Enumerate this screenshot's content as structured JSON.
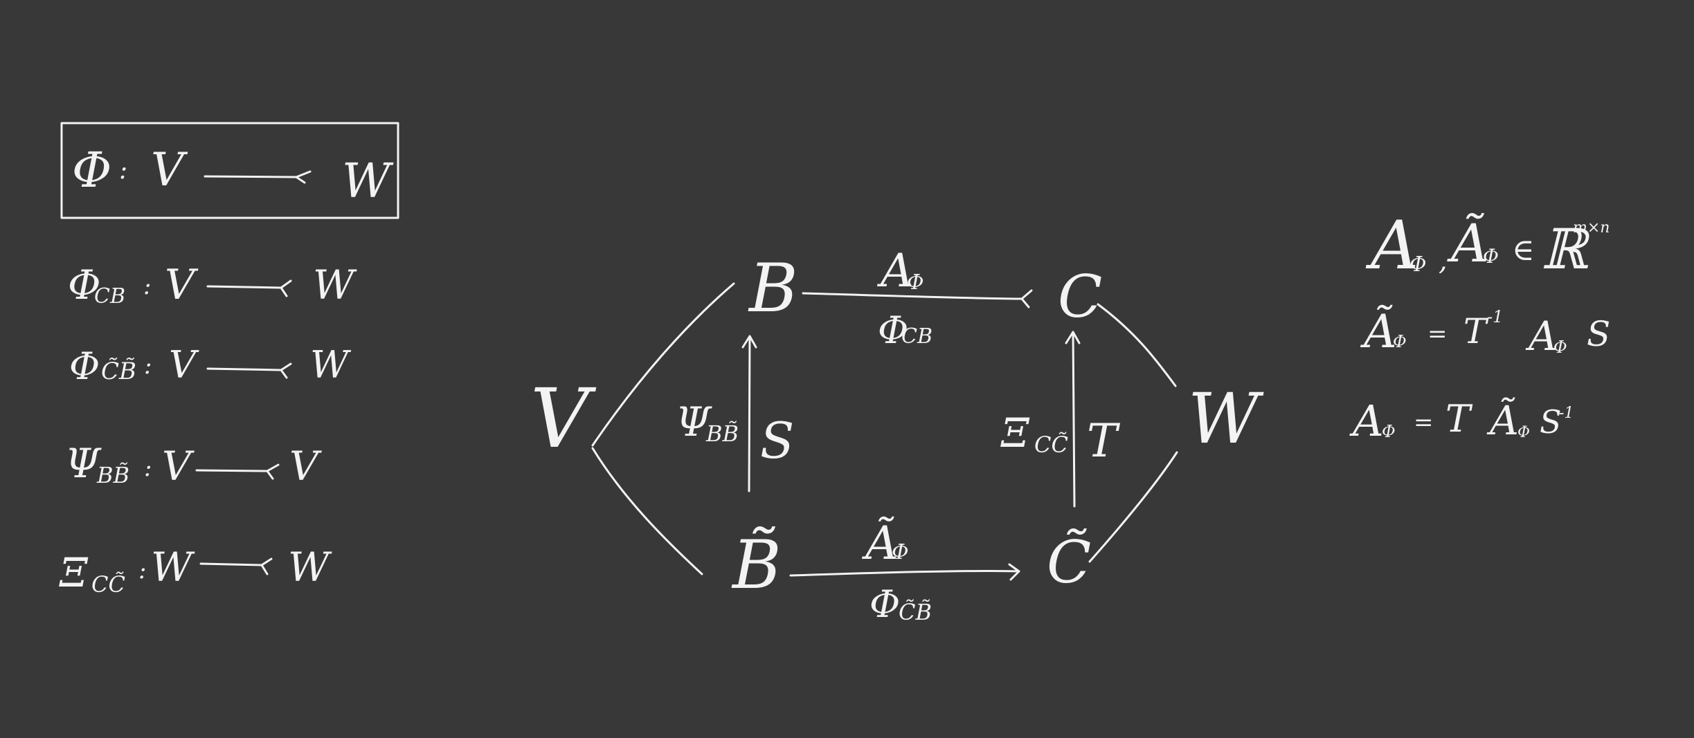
{
  "colors": {
    "background": "#383838",
    "ink": "#f3f3f3"
  },
  "definitions": {
    "phi": {
      "map": "Φ",
      "sep": ":",
      "dom": "V",
      "cod": "W"
    },
    "phi_cb": {
      "map": "Φ",
      "sub": "CB",
      "sep": ":",
      "dom": "V",
      "cod": "W"
    },
    "phi_tcb": {
      "map": "Φ",
      "sub": "C̃B̃",
      "sep": ":",
      "dom": "V",
      "cod": "W"
    },
    "psi": {
      "map": "Ψ",
      "sub": "BB̃",
      "sep": ":",
      "dom": "V",
      "cod": "V"
    },
    "xi": {
      "map": "Ξ",
      "sub": "CC̃",
      "sep": ":",
      "dom": "W",
      "cod": "W"
    }
  },
  "diagram": {
    "nodes": {
      "V": "V",
      "B": "B",
      "Bt": "B̃",
      "C": "C",
      "Ct": "C̃",
      "W": "W"
    },
    "edges": {
      "top_over": {
        "base": "A",
        "sub": "Φ"
      },
      "top_under": {
        "base": "Φ",
        "sub": "CB"
      },
      "bottom_over": {
        "base": "Ã",
        "sub": "Φ"
      },
      "bottom_under": {
        "base": "Φ",
        "sub": "C̃B̃"
      },
      "left_map": {
        "base": "Ψ",
        "sub": "BB̃"
      },
      "left_matrix": "S",
      "right_map": {
        "base": "Ξ",
        "sub": "CC̃"
      },
      "right_matrix": "T"
    }
  },
  "equations": {
    "eq1": {
      "a": "A",
      "a_sub": "Φ",
      "comma": ",",
      "b": "Ã",
      "b_sub": "Φ",
      "in": "∈",
      "field": "ℝ",
      "dims": "m×n"
    },
    "eq2": {
      "lhs": "Ã",
      "lhs_sub": "Φ",
      "eq": "=",
      "t": "T",
      "t_sup": "-1",
      "a": "A",
      "a_sub": "Φ",
      "s": "S"
    },
    "eq3": {
      "lhs": "A",
      "lhs_sub": "Φ",
      "eq": "=",
      "t": "T",
      "a": "Ã",
      "a_sub": "Φ",
      "s": "S",
      "s_sup": "-1"
    }
  }
}
